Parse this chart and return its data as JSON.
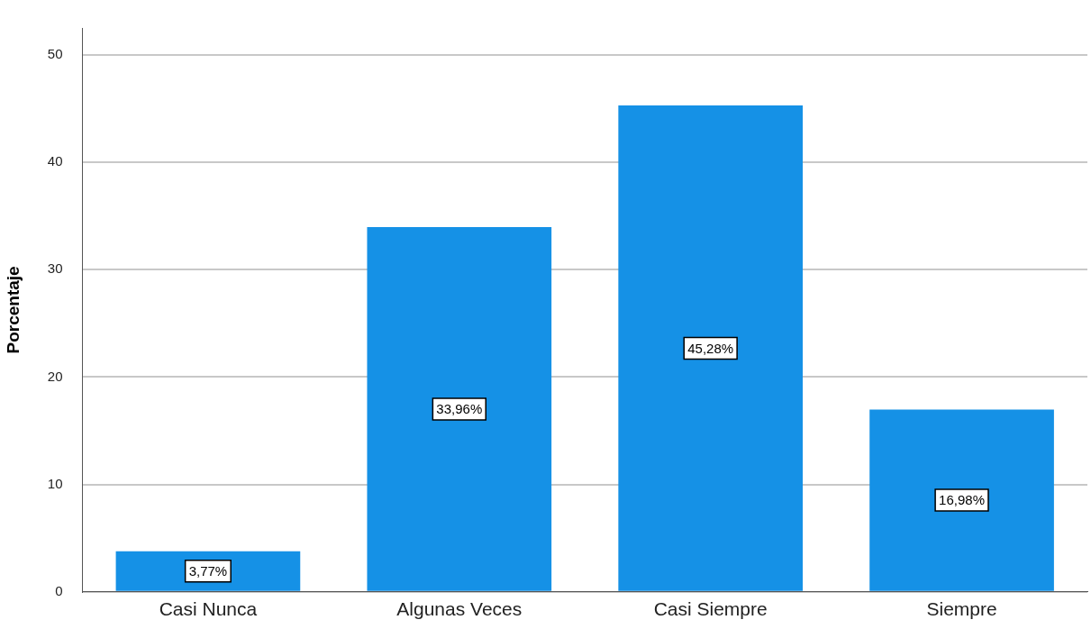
{
  "chart_data": {
    "type": "bar",
    "ylabel": "Porcentaje",
    "categories": [
      "Casi Nunca",
      "Algunas Veces",
      "Casi Siempre",
      "Siempre"
    ],
    "values": [
      3.77,
      33.96,
      45.28,
      16.98
    ],
    "value_labels": [
      "3,77%",
      "33,96%",
      "45,28%",
      "16,98%"
    ],
    "color": "#1591e6",
    "ylim": [
      0,
      52.5
    ],
    "yticks": [
      0,
      10,
      20,
      30,
      40,
      50
    ],
    "grid": "y",
    "legend": false
  }
}
